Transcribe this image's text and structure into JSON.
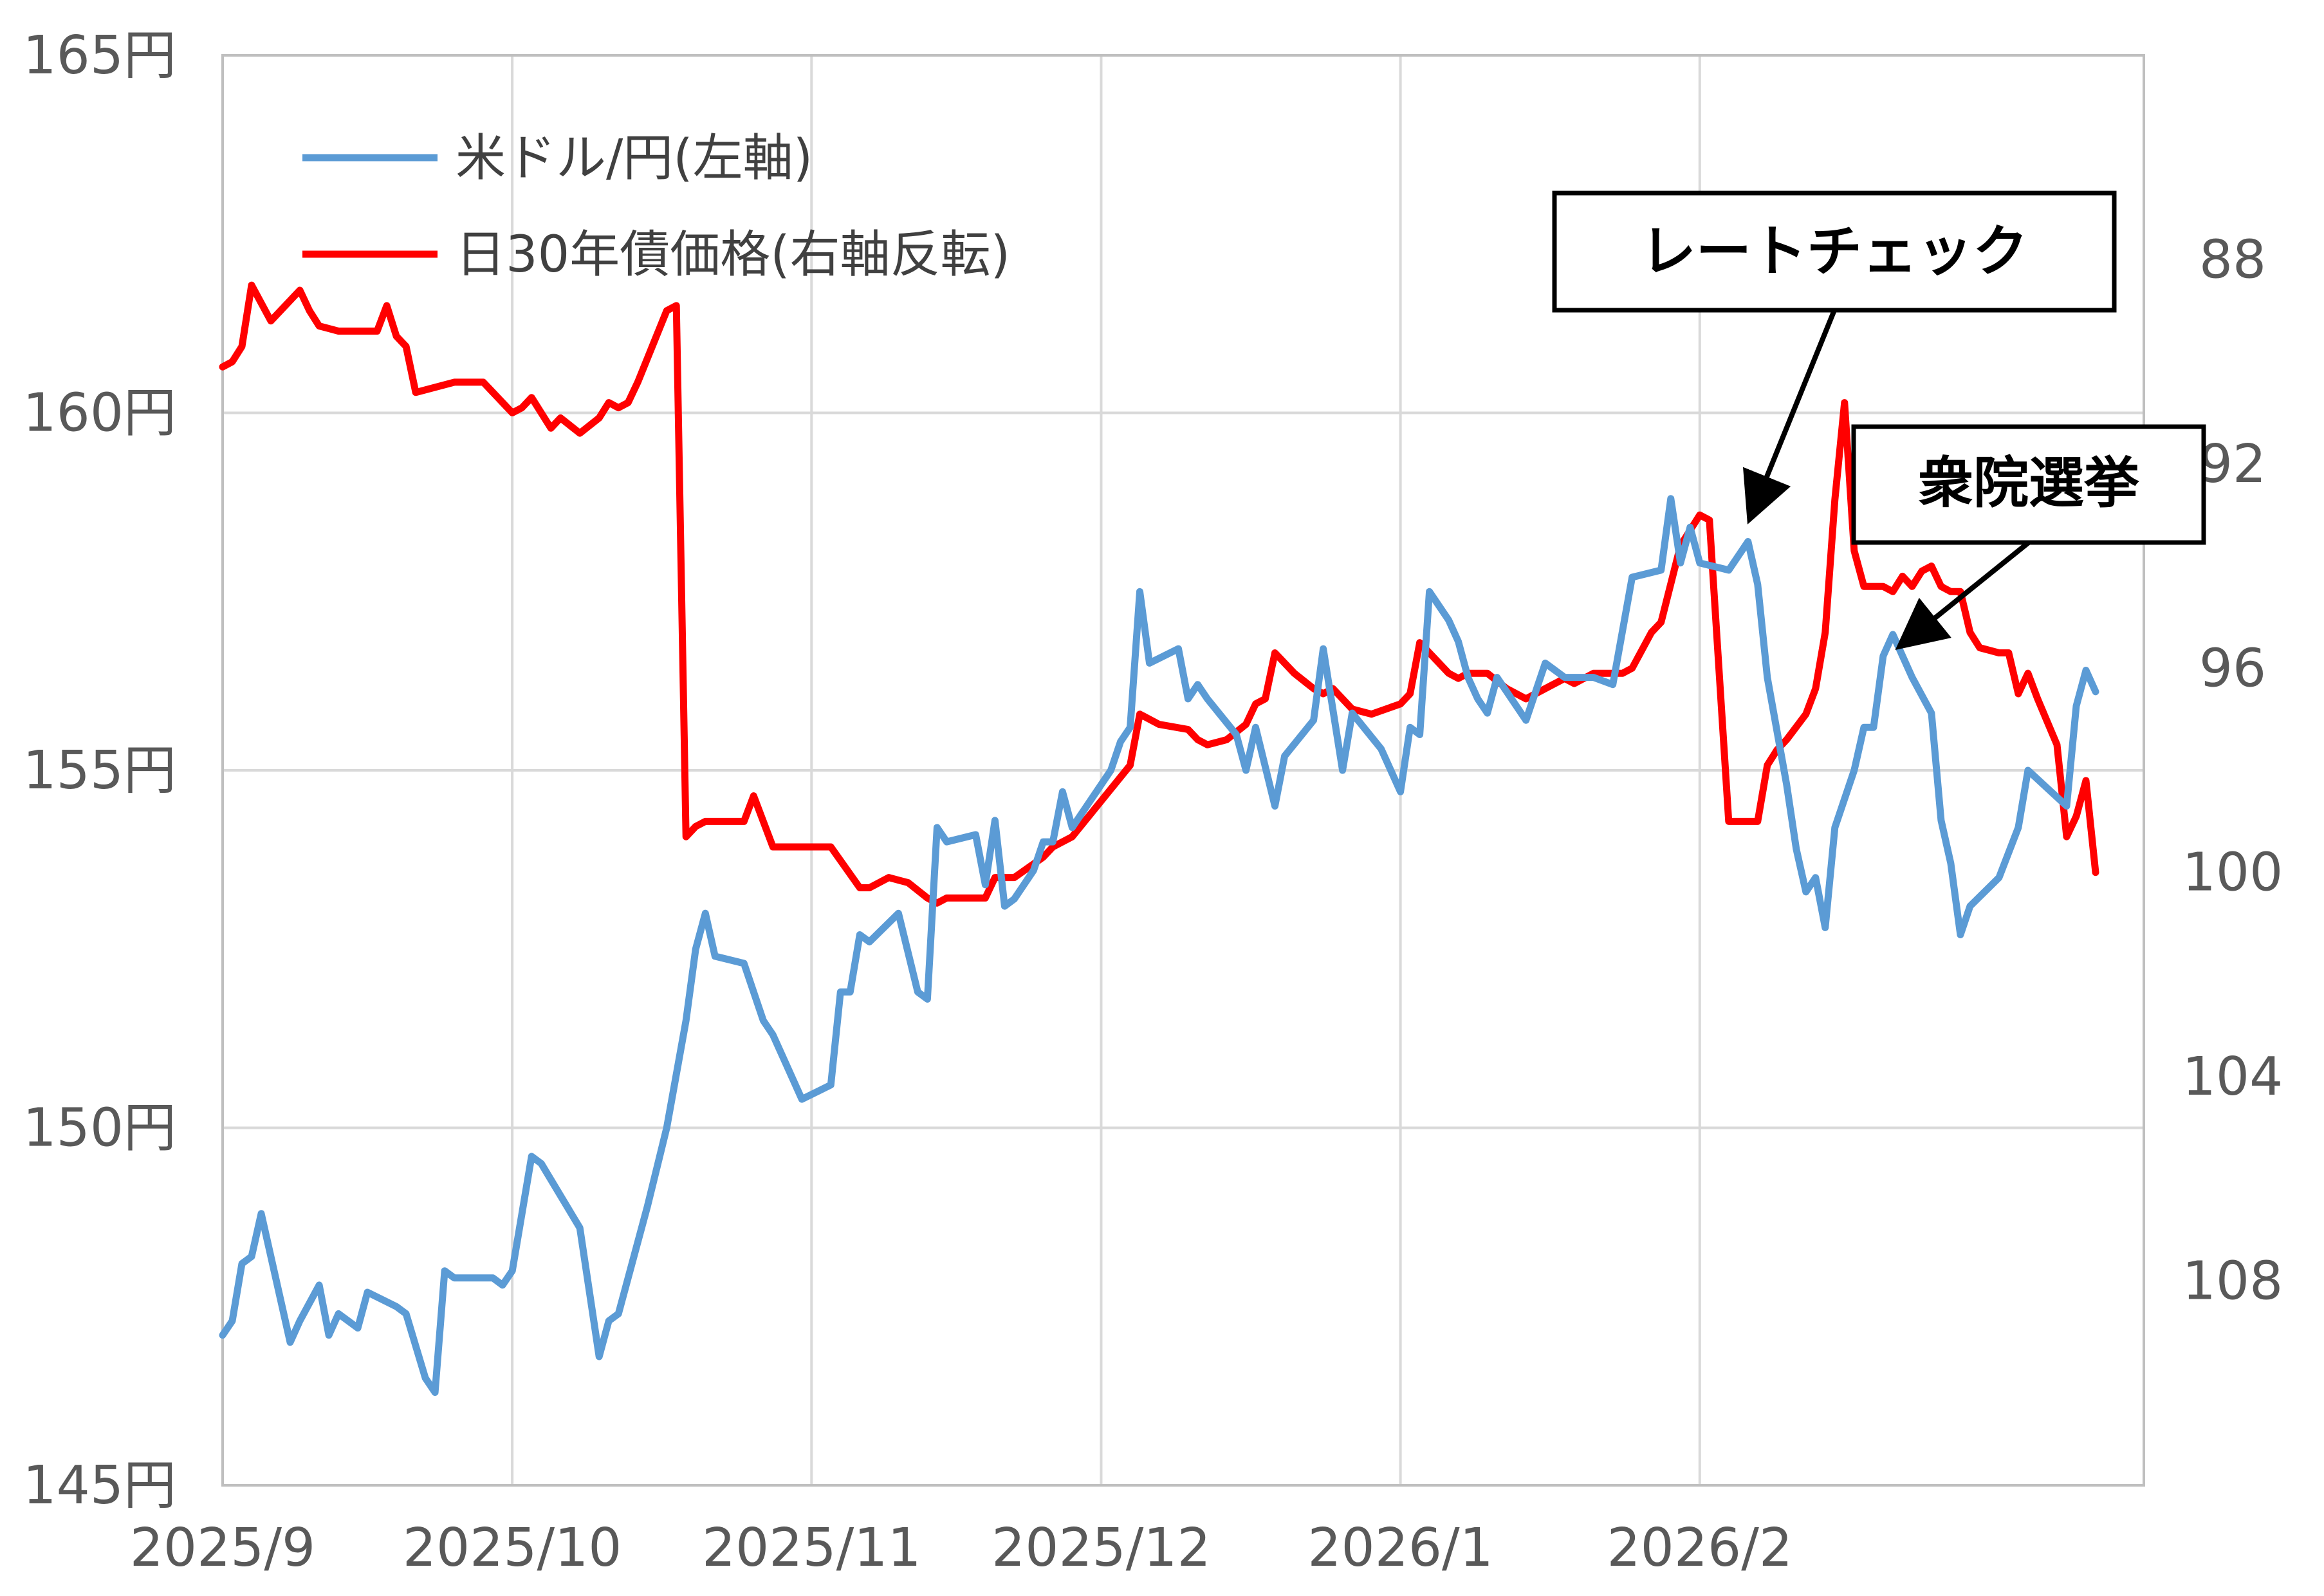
{
  "chart_data": {
    "type": "line",
    "x_ticks": [
      "2025/9",
      "2025/10",
      "2025/11",
      "2025/12",
      "2026/1",
      "2026/2"
    ],
    "left_axis": {
      "ylim": [
        145,
        165
      ],
      "ticks": [
        145,
        150,
        155,
        160,
        165
      ],
      "tick_labels": [
        "145円",
        "150円",
        "155円",
        "160円",
        "165円"
      ]
    },
    "right_axis": {
      "inverted": true,
      "ylim": [
        84,
        112
      ],
      "ticks": [
        88,
        92,
        96,
        100,
        104,
        108
      ],
      "tick_labels": [
        "88",
        "92",
        "96",
        "100",
        "104",
        "108"
      ]
    },
    "grid": true,
    "legend_position": "top-left",
    "series": [
      {
        "name": "米ドル/円(左軸)",
        "axis": "left",
        "color": "#5b9bd5",
        "points": [
          [
            "2025-09-01",
            147.1
          ],
          [
            "2025-09-02",
            147.3
          ],
          [
            "2025-09-03",
            148.1
          ],
          [
            "2025-09-04",
            148.2
          ],
          [
            "2025-09-05",
            148.8
          ],
          [
            "2025-09-08",
            147.0
          ],
          [
            "2025-09-09",
            147.3
          ],
          [
            "2025-09-11",
            147.8
          ],
          [
            "2025-09-12",
            147.1
          ],
          [
            "2025-09-13",
            147.4
          ],
          [
            "2025-09-15",
            147.2
          ],
          [
            "2025-09-16",
            147.7
          ],
          [
            "2025-09-19",
            147.5
          ],
          [
            "2025-09-20",
            147.4
          ],
          [
            "2025-09-22",
            146.5
          ],
          [
            "2025-09-23",
            146.3
          ],
          [
            "2025-09-24",
            148.0
          ],
          [
            "2025-09-25",
            147.9
          ],
          [
            "2025-09-29",
            147.9
          ],
          [
            "2025-09-30",
            147.8
          ],
          [
            "2025-10-01",
            148.0
          ],
          [
            "2025-10-03",
            149.6
          ],
          [
            "2025-10-04",
            149.5
          ],
          [
            "2025-10-08",
            148.6
          ],
          [
            "2025-10-10",
            146.8
          ],
          [
            "2025-10-11",
            147.3
          ],
          [
            "2025-10-12",
            147.4
          ],
          [
            "2025-10-15",
            148.9
          ],
          [
            "2025-10-17",
            150.0
          ],
          [
            "2025-10-19",
            151.5
          ],
          [
            "2025-10-20",
            152.5
          ],
          [
            "2025-10-21",
            153.0
          ],
          [
            "2025-10-22",
            152.4
          ],
          [
            "2025-10-25",
            152.3
          ],
          [
            "2025-10-27",
            151.5
          ],
          [
            "2025-10-28",
            151.3
          ],
          [
            "2025-10-30",
            150.7
          ],
          [
            "2025-10-31",
            150.4
          ],
          [
            "2025-11-03",
            150.6
          ],
          [
            "2025-11-04",
            151.9
          ],
          [
            "2025-11-05",
            151.9
          ],
          [
            "2025-11-06",
            152.7
          ],
          [
            "2025-11-07",
            152.6
          ],
          [
            "2025-11-10",
            153.0
          ],
          [
            "2025-11-12",
            151.9
          ],
          [
            "2025-11-13",
            151.8
          ],
          [
            "2025-11-14",
            154.2
          ],
          [
            "2025-11-15",
            154.0
          ],
          [
            "2025-11-18",
            154.1
          ],
          [
            "2025-11-19",
            153.4
          ],
          [
            "2025-11-20",
            154.3
          ],
          [
            "2025-11-21",
            153.1
          ],
          [
            "2025-11-22",
            153.2
          ],
          [
            "2025-11-24",
            153.6
          ],
          [
            "2025-11-25",
            154.0
          ],
          [
            "2025-11-26",
            154.0
          ],
          [
            "2025-11-27",
            154.7
          ],
          [
            "2025-11-28",
            154.2
          ],
          [
            "2025-12-02",
            155.0
          ],
          [
            "2025-12-03",
            155.4
          ],
          [
            "2025-12-04",
            155.6
          ],
          [
            "2025-12-05",
            157.5
          ],
          [
            "2025-12-06",
            156.5
          ],
          [
            "2025-12-09",
            156.7
          ],
          [
            "2025-12-10",
            156.0
          ],
          [
            "2025-12-11",
            156.2
          ],
          [
            "2025-12-12",
            156.0
          ],
          [
            "2025-12-15",
            155.5
          ],
          [
            "2025-12-16",
            155.0
          ],
          [
            "2025-12-17",
            155.6
          ],
          [
            "2025-12-19",
            154.5
          ],
          [
            "2025-12-20",
            155.2
          ],
          [
            "2025-12-23",
            155.7
          ],
          [
            "2025-12-24",
            156.7
          ],
          [
            "2025-12-26",
            155.0
          ],
          [
            "2025-12-27",
            155.8
          ],
          [
            "2025-12-30",
            155.3
          ],
          [
            "2026-01-01",
            154.7
          ],
          [
            "2026-01-02",
            155.6
          ],
          [
            "2026-01-03",
            155.5
          ],
          [
            "2026-01-04",
            157.5
          ],
          [
            "2026-01-06",
            157.1
          ],
          [
            "2026-01-07",
            156.8
          ],
          [
            "2026-01-08",
            156.3
          ],
          [
            "2026-01-09",
            156.0
          ],
          [
            "2026-01-10",
            155.8
          ],
          [
            "2026-01-11",
            156.3
          ],
          [
            "2026-01-14",
            155.7
          ],
          [
            "2026-01-16",
            156.5
          ],
          [
            "2026-01-18",
            156.3
          ],
          [
            "2026-01-21",
            156.3
          ],
          [
            "2026-01-23",
            156.2
          ],
          [
            "2026-01-25",
            157.7
          ],
          [
            "2026-01-28",
            157.8
          ],
          [
            "2026-01-29",
            158.8
          ],
          [
            "2026-01-30",
            157.9
          ],
          [
            "2026-01-31",
            158.4
          ],
          [
            "2026-02-01",
            157.9
          ],
          [
            "2026-02-04",
            157.8
          ],
          [
            "2026-02-06",
            158.2
          ],
          [
            "2026-02-07",
            157.6
          ],
          [
            "2026-02-08",
            156.3
          ],
          [
            "2026-02-10",
            154.8
          ],
          [
            "2026-02-11",
            153.9
          ],
          [
            "2026-02-12",
            153.3
          ],
          [
            "2026-02-13",
            153.5
          ],
          [
            "2026-02-14",
            152.8
          ],
          [
            "2026-02-15",
            154.2
          ],
          [
            "2026-02-17",
            155.0
          ],
          [
            "2026-02-18",
            155.6
          ],
          [
            "2026-02-19",
            155.6
          ],
          [
            "2026-02-20",
            156.6
          ],
          [
            "2026-02-21",
            156.9
          ],
          [
            "2026-02-23",
            156.3
          ],
          [
            "2026-02-25",
            155.8
          ],
          [
            "2026-02-26",
            154.3
          ],
          [
            "2026-02-27",
            153.7
          ],
          [
            "2026-02-28",
            152.7
          ],
          [
            "2026-03-01",
            153.1
          ],
          [
            "2026-03-04",
            153.5
          ],
          [
            "2026-03-06",
            154.2
          ],
          [
            "2026-03-07",
            155.0
          ],
          [
            "2026-03-11",
            154.5
          ],
          [
            "2026-03-12",
            155.9
          ],
          [
            "2026-03-13",
            156.4
          ],
          [
            "2026-03-14",
            156.1
          ]
        ]
      },
      {
        "name": "日30年債価格(右軸反転)",
        "axis": "right",
        "color": "#ff0000",
        "points": [
          [
            "2025-09-01",
            90.1
          ],
          [
            "2025-09-02",
            90.0
          ],
          [
            "2025-09-03",
            89.7
          ],
          [
            "2025-09-04",
            88.5
          ],
          [
            "2025-09-06",
            89.2
          ],
          [
            "2025-09-09",
            88.6
          ],
          [
            "2025-09-10",
            89.0
          ],
          [
            "2025-09-11",
            89.3
          ],
          [
            "2025-09-13",
            89.4
          ],
          [
            "2025-09-16",
            89.4
          ],
          [
            "2025-09-17",
            89.4
          ],
          [
            "2025-09-18",
            88.9
          ],
          [
            "2025-09-19",
            89.5
          ],
          [
            "2025-09-20",
            89.7
          ],
          [
            "2025-09-21",
            90.6
          ],
          [
            "2025-09-25",
            90.4
          ],
          [
            "2025-09-26",
            90.4
          ],
          [
            "2025-09-28",
            90.4
          ],
          [
            "2025-10-01",
            91.0
          ],
          [
            "2025-10-02",
            90.9
          ],
          [
            "2025-10-03",
            90.7
          ],
          [
            "2025-10-05",
            91.3
          ],
          [
            "2025-10-06",
            91.1
          ],
          [
            "2025-10-08",
            91.4
          ],
          [
            "2025-10-10",
            91.1
          ],
          [
            "2025-10-11",
            90.8
          ],
          [
            "2025-10-12",
            90.9
          ],
          [
            "2025-10-13",
            90.8
          ],
          [
            "2025-10-14",
            90.4
          ],
          [
            "2025-10-17",
            89.0
          ],
          [
            "2025-10-18",
            88.9
          ],
          [
            "2025-10-19",
            99.3
          ],
          [
            "2025-10-20",
            99.1
          ],
          [
            "2025-10-21",
            99.0
          ],
          [
            "2025-10-25",
            99.0
          ],
          [
            "2025-10-26",
            98.5
          ],
          [
            "2025-10-28",
            99.5
          ],
          [
            "2025-10-30",
            99.5
          ],
          [
            "2025-11-01",
            99.5
          ],
          [
            "2025-11-02",
            99.5
          ],
          [
            "2025-11-03",
            99.5
          ],
          [
            "2025-11-06",
            100.3
          ],
          [
            "2025-11-07",
            100.3
          ],
          [
            "2025-11-09",
            100.1
          ],
          [
            "2025-11-11",
            100.2
          ],
          [
            "2025-11-13",
            100.5
          ],
          [
            "2025-11-14",
            100.6
          ],
          [
            "2025-11-15",
            100.5
          ],
          [
            "2025-11-19",
            100.5
          ],
          [
            "2025-11-20",
            100.1
          ],
          [
            "2025-11-22",
            100.1
          ],
          [
            "2025-11-25",
            99.7
          ],
          [
            "2025-11-26",
            99.5
          ],
          [
            "2025-11-27",
            99.4
          ],
          [
            "2025-11-28",
            99.3
          ],
          [
            "2025-12-04",
            97.9
          ],
          [
            "2025-12-05",
            96.9
          ],
          [
            "2025-12-07",
            97.1
          ],
          [
            "2025-12-10",
            97.2
          ],
          [
            "2025-12-11",
            97.4
          ],
          [
            "2025-12-12",
            97.5
          ],
          [
            "2025-12-14",
            97.4
          ],
          [
            "2025-12-16",
            97.1
          ],
          [
            "2025-12-17",
            96.7
          ],
          [
            "2025-12-18",
            96.6
          ],
          [
            "2025-12-19",
            95.7
          ],
          [
            "2025-12-21",
            96.1
          ],
          [
            "2025-12-23",
            96.4
          ],
          [
            "2025-12-24",
            96.5
          ],
          [
            "2025-12-25",
            96.4
          ],
          [
            "2025-12-27",
            96.8
          ],
          [
            "2025-12-29",
            96.9
          ],
          [
            "2026-01-01",
            96.7
          ],
          [
            "2026-01-02",
            96.5
          ],
          [
            "2026-01-03",
            95.5
          ],
          [
            "2026-01-06",
            96.1
          ],
          [
            "2026-01-07",
            96.2
          ],
          [
            "2026-01-08",
            96.1
          ],
          [
            "2026-01-09",
            96.1
          ],
          [
            "2026-01-10",
            96.1
          ],
          [
            "2026-01-12",
            96.4
          ],
          [
            "2026-01-14",
            96.6
          ],
          [
            "2026-01-16",
            96.4
          ],
          [
            "2026-01-18",
            96.2
          ],
          [
            "2026-01-19",
            96.3
          ],
          [
            "2026-01-21",
            96.1
          ],
          [
            "2026-01-23",
            96.1
          ],
          [
            "2026-01-24",
            96.1
          ],
          [
            "2026-01-25",
            96.0
          ],
          [
            "2026-01-27",
            95.3
          ],
          [
            "2026-01-28",
            95.1
          ],
          [
            "2026-01-30",
            93.6
          ],
          [
            "2026-01-31",
            93.3
          ],
          [
            "2026-02-01",
            93.0
          ],
          [
            "2026-02-02",
            93.1
          ],
          [
            "2026-02-04",
            99.0
          ],
          [
            "2026-02-07",
            99.0
          ],
          [
            "2026-02-08",
            97.9
          ],
          [
            "2026-02-09",
            97.6
          ],
          [
            "2026-02-10",
            97.4
          ],
          [
            "2026-02-12",
            96.9
          ],
          [
            "2026-02-13",
            96.4
          ],
          [
            "2026-02-14",
            95.3
          ],
          [
            "2026-02-15",
            92.7
          ],
          [
            "2026-02-16",
            90.8
          ],
          [
            "2026-02-17",
            93.7
          ],
          [
            "2026-02-18",
            94.4
          ],
          [
            "2026-02-20",
            94.4
          ],
          [
            "2026-02-21",
            94.5
          ],
          [
            "2026-02-22",
            94.2
          ],
          [
            "2026-02-23",
            94.4
          ],
          [
            "2026-02-24",
            94.1
          ],
          [
            "2026-02-25",
            94.0
          ],
          [
            "2026-02-26",
            94.4
          ],
          [
            "2026-02-27",
            94.5
          ],
          [
            "2026-02-28",
            94.5
          ],
          [
            "2026-03-01",
            95.3
          ],
          [
            "2026-03-02",
            95.6
          ],
          [
            "2026-03-04",
            95.7
          ],
          [
            "2026-03-05",
            95.7
          ],
          [
            "2026-03-06",
            96.5
          ],
          [
            "2026-03-07",
            96.1
          ],
          [
            "2026-03-08",
            96.6
          ],
          [
            "2026-03-10",
            97.5
          ],
          [
            "2026-03-11",
            99.3
          ],
          [
            "2026-03-12",
            98.9
          ],
          [
            "2026-03-13",
            98.2
          ],
          [
            "2026-03-14",
            100.0
          ]
        ]
      }
    ],
    "annotations": [
      {
        "text": "レートチェック"
      },
      {
        "text": "衆院選挙"
      }
    ]
  }
}
